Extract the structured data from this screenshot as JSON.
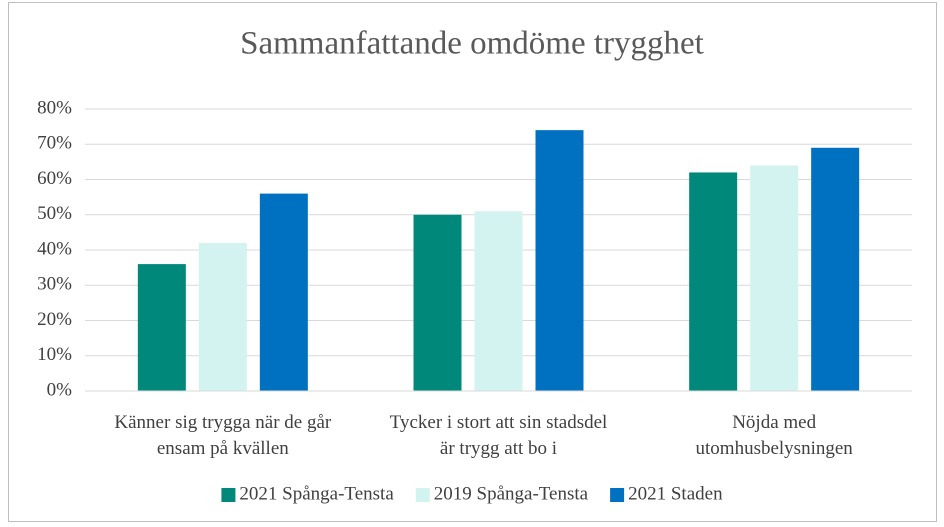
{
  "chart_data": {
    "type": "bar",
    "title": "Sammanfattande omdöme trygghet",
    "categories": [
      "Känner sig trygga när de går ensam på kvällen",
      "Tycker i stort att sin stadsdel är trygg att bo i",
      "Nöjda med utomhusbelysningen"
    ],
    "series": [
      {
        "name": "2021 Spånga-Tensta",
        "color": "#00897b",
        "values": [
          36,
          50,
          62
        ]
      },
      {
        "name": "2019 Spånga-Tensta",
        "color": "#d3f3f1",
        "values": [
          42,
          51,
          64
        ]
      },
      {
        "name": "2021 Staden",
        "color": "#0070c0",
        "values": [
          56,
          74,
          69
        ]
      }
    ],
    "ylim": [
      0,
      80
    ],
    "yticks": [
      {
        "value": 0,
        "label": "0%"
      },
      {
        "value": 10,
        "label": "10%"
      },
      {
        "value": 20,
        "label": "20%"
      },
      {
        "value": 30,
        "label": "30%"
      },
      {
        "value": 40,
        "label": "40%"
      },
      {
        "value": 50,
        "label": "50%"
      },
      {
        "value": 60,
        "label": "60%"
      },
      {
        "value": 70,
        "label": "70%"
      },
      {
        "value": 80,
        "label": "80%"
      }
    ],
    "grid": true,
    "legend": "bottom"
  }
}
